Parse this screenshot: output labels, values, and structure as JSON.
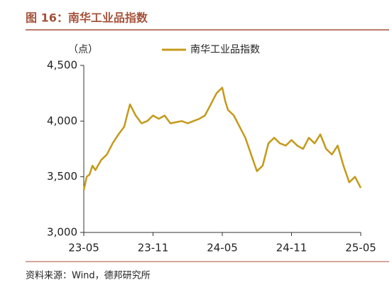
{
  "chart_data": {
    "type": "line",
    "title": "图 16：南华工业品指数",
    "y_unit": "（点）",
    "source": "资料来源：Wind，德邦研究所",
    "x": [
      0,
      0.25,
      0.5,
      0.75,
      1,
      1.5,
      2,
      2.5,
      3,
      3.5,
      3.75,
      4,
      4.5,
      5,
      5.5,
      6,
      6.5,
      7,
      7.5,
      8,
      8.5,
      9,
      9.5,
      10,
      10.5,
      11,
      11.5,
      12,
      12.25,
      12.5,
      13,
      13.5,
      14,
      14.5,
      15,
      15.5,
      16,
      16.5,
      17,
      17.5,
      18,
      18.5,
      19,
      19.5,
      20,
      20.5,
      21,
      21.5,
      22,
      22.5,
      23,
      23.5,
      24
    ],
    "series": [
      {
        "name": "南华工业品指数",
        "color": "#c49a1a",
        "values": [
          3380,
          3500,
          3520,
          3600,
          3560,
          3650,
          3700,
          3800,
          3880,
          3950,
          4050,
          4150,
          4050,
          3980,
          4000,
          4050,
          4020,
          4050,
          3980,
          3990,
          4000,
          3980,
          4000,
          4020,
          4050,
          4150,
          4250,
          4300,
          4180,
          4100,
          4050,
          3950,
          3850,
          3700,
          3550,
          3600,
          3800,
          3850,
          3800,
          3780,
          3830,
          3780,
          3750,
          3850,
          3800,
          3880,
          3750,
          3700,
          3780,
          3600,
          3450,
          3500,
          3400
        ]
      }
    ],
    "xlim": [
      0,
      24
    ],
    "xticks": [
      {
        "value": 0,
        "label": "23-05"
      },
      {
        "value": 6,
        "label": "23-11"
      },
      {
        "value": 12,
        "label": "24-05"
      },
      {
        "value": 18,
        "label": "24-11"
      },
      {
        "value": 24,
        "label": "25-05"
      }
    ],
    "ylim": [
      3000,
      4500
    ],
    "yticks": [
      {
        "value": 3000,
        "label": "3,000"
      },
      {
        "value": 3500,
        "label": "3,500"
      },
      {
        "value": 4000,
        "label": "4,000"
      },
      {
        "value": 4500,
        "label": "4,500"
      }
    ],
    "grid": false
  }
}
